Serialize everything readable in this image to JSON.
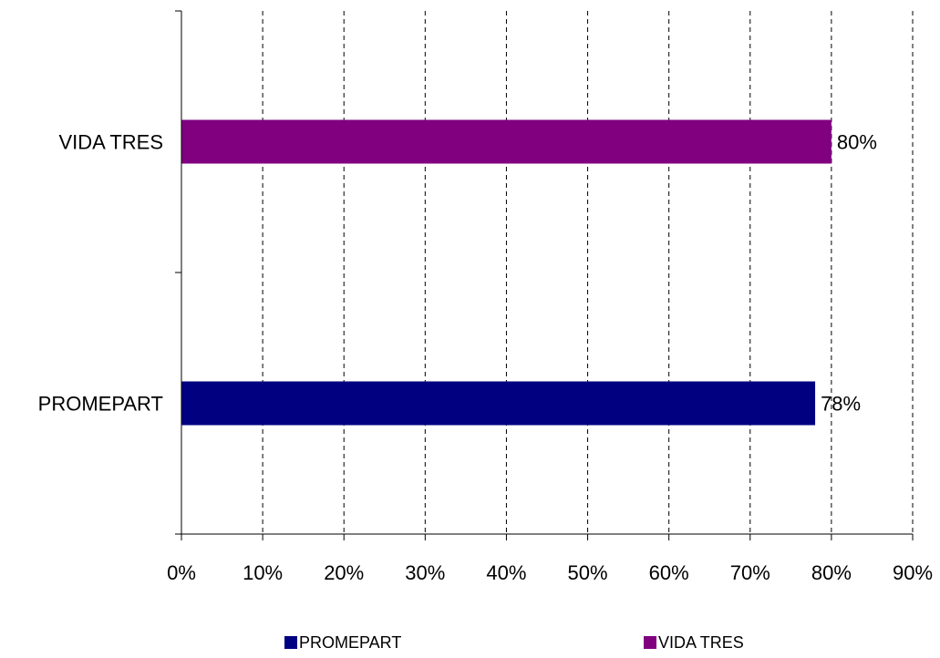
{
  "chart_data": {
    "type": "bar",
    "orientation": "horizontal",
    "categories": [
      "PROMEPART",
      "VIDA TRES"
    ],
    "values": [
      78,
      80
    ],
    "data_labels": [
      "78%",
      "80%"
    ],
    "colors": [
      "#000080",
      "#800080"
    ],
    "xlim": [
      0,
      90
    ],
    "x_ticks": [
      0,
      10,
      20,
      30,
      40,
      50,
      60,
      70,
      80,
      90
    ],
    "x_tick_labels": [
      "0%",
      "10%",
      "20%",
      "30%",
      "40%",
      "50%",
      "60%",
      "70%",
      "80%",
      "90%"
    ],
    "grid": "vertical dashed",
    "legend": {
      "placement": "bottom",
      "entries": [
        {
          "label": "PROMEPART",
          "color": "#000080"
        },
        {
          "label": "VIDA TRES",
          "color": "#800080"
        }
      ]
    },
    "title": "",
    "xlabel": "",
    "ylabel": ""
  }
}
